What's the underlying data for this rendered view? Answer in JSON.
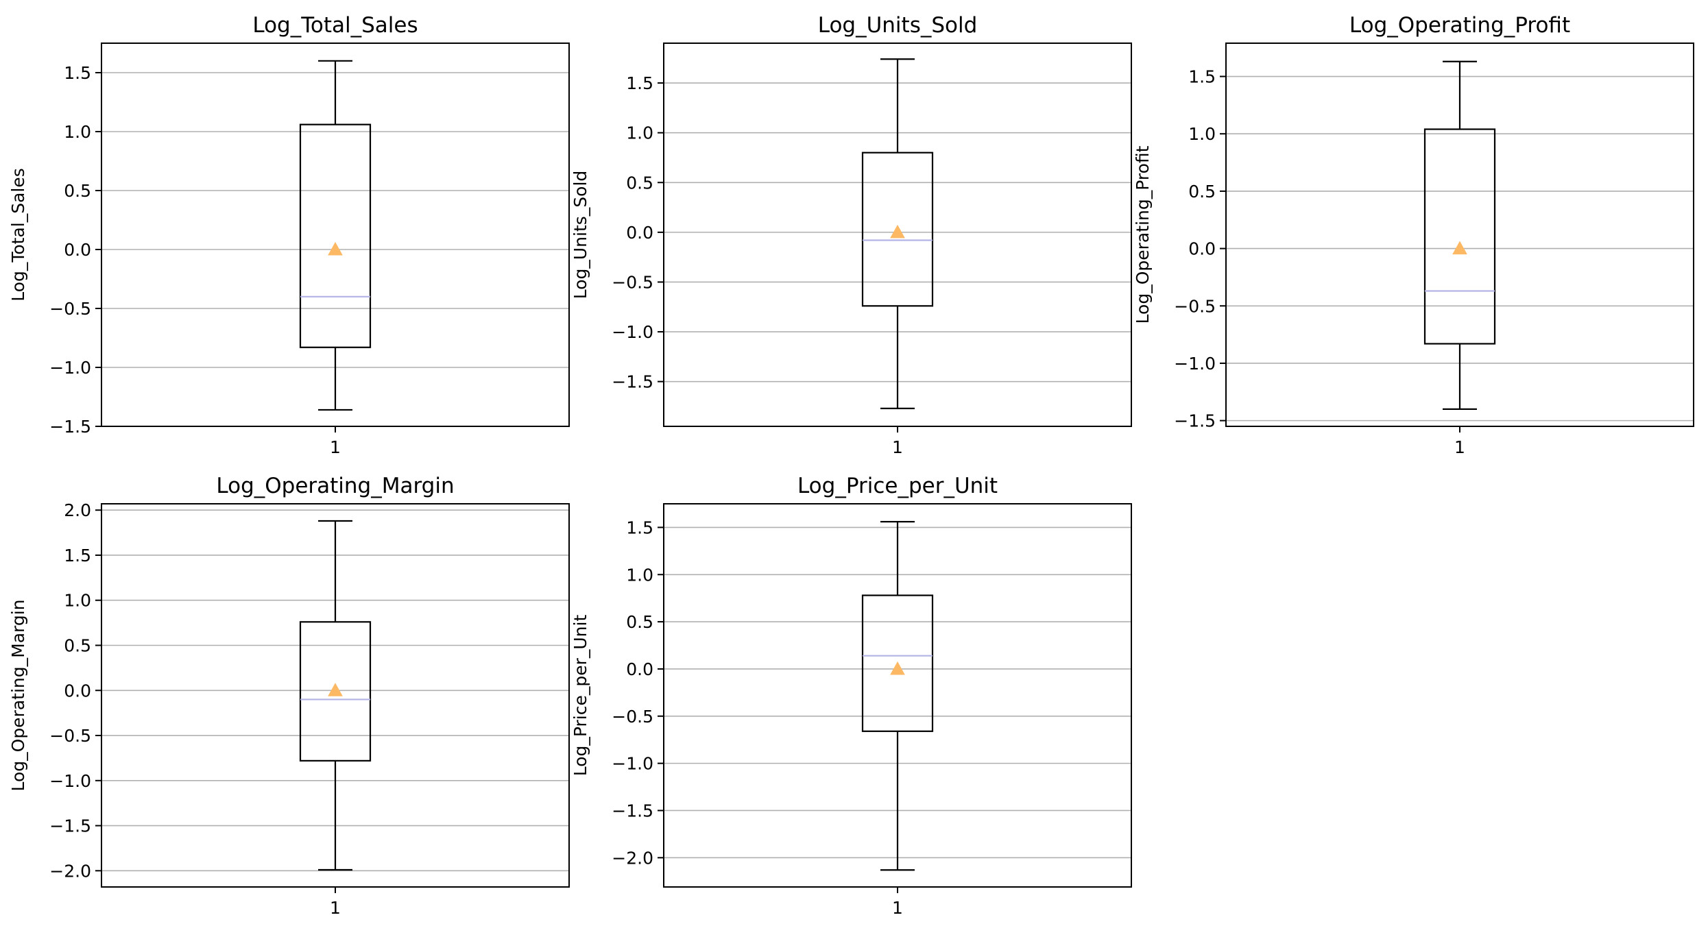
{
  "figure": {
    "background": "#ffffff",
    "grid_color": "#b0b0b0",
    "box_color": "#000000",
    "median_color": "#b3b3e6",
    "mean_color": "#fdb863",
    "mean_marker": "triangle"
  },
  "chart_data": [
    {
      "type": "box",
      "title": "Log_Total_Sales",
      "xlabel": "",
      "ylabel": "Log_Total_Sales",
      "categories": [
        "1"
      ],
      "ylim": [
        -1.5,
        1.75
      ],
      "yticks": [
        -1.5,
        -1.0,
        -0.5,
        0.0,
        0.5,
        1.0,
        1.5
      ],
      "ytick_labels": [
        "−1.5",
        "−1.0",
        "−0.5",
        "0.0",
        "0.5",
        "1.0",
        "1.5"
      ],
      "grid": "y",
      "box": {
        "whisker_low": -1.36,
        "q1": -0.83,
        "median": -0.4,
        "q3": 1.06,
        "whisker_high": 1.6,
        "mean": 0.0
      }
    },
    {
      "type": "box",
      "title": "Log_Units_Sold",
      "xlabel": "",
      "ylabel": "Log_Units_Sold",
      "categories": [
        "1"
      ],
      "ylim": [
        -1.95,
        1.9
      ],
      "yticks": [
        -1.5,
        -1.0,
        -0.5,
        0.0,
        0.5,
        1.0,
        1.5
      ],
      "ytick_labels": [
        "−1.5",
        "−1.0",
        "−0.5",
        "0.0",
        "0.5",
        "1.0",
        "1.5"
      ],
      "grid": "y",
      "box": {
        "whisker_low": -1.77,
        "q1": -0.74,
        "median": -0.08,
        "q3": 0.8,
        "whisker_high": 1.74,
        "mean": 0.0
      }
    },
    {
      "type": "box",
      "title": "Log_Operating_Profit",
      "xlabel": "",
      "ylabel": "Log_Operating_Profit",
      "categories": [
        "1"
      ],
      "ylim": [
        -1.55,
        1.79
      ],
      "yticks": [
        -1.5,
        -1.0,
        -0.5,
        0.0,
        0.5,
        1.0,
        1.5
      ],
      "ytick_labels": [
        "−1.5",
        "−1.0",
        "−0.5",
        "0.0",
        "0.5",
        "1.0",
        "1.5"
      ],
      "grid": "y",
      "box": {
        "whisker_low": -1.4,
        "q1": -0.83,
        "median": -0.37,
        "q3": 1.04,
        "whisker_high": 1.63,
        "mean": 0.0
      }
    },
    {
      "type": "box",
      "title": "Log_Operating_Margin",
      "xlabel": "",
      "ylabel": "Log_Operating_Margin",
      "categories": [
        "1"
      ],
      "ylim": [
        -2.18,
        2.07
      ],
      "yticks": [
        -2.0,
        -1.5,
        -1.0,
        -0.5,
        0.0,
        0.5,
        1.0,
        1.5,
        2.0
      ],
      "ytick_labels": [
        "−2.0",
        "−1.5",
        "−1.0",
        "−0.5",
        "0.0",
        "0.5",
        "1.0",
        "1.5",
        "2.0"
      ],
      "grid": "y",
      "box": {
        "whisker_low": -1.99,
        "q1": -0.78,
        "median": -0.1,
        "q3": 0.76,
        "whisker_high": 1.88,
        "mean": 0.0
      }
    },
    {
      "type": "box",
      "title": "Log_Price_per_Unit",
      "xlabel": "",
      "ylabel": "Log_Price_per_Unit",
      "categories": [
        "1"
      ],
      "ylim": [
        -2.31,
        1.75
      ],
      "yticks": [
        -2.0,
        -1.5,
        -1.0,
        -0.5,
        0.0,
        0.5,
        1.0,
        1.5
      ],
      "ytick_labels": [
        "−2.0",
        "−1.5",
        "−1.0",
        "−0.5",
        "0.0",
        "0.5",
        "1.0",
        "1.5"
      ],
      "grid": "y",
      "box": {
        "whisker_low": -2.13,
        "q1": -0.66,
        "median": 0.14,
        "q3": 0.78,
        "whisker_high": 1.56,
        "mean": 0.0
      }
    }
  ]
}
